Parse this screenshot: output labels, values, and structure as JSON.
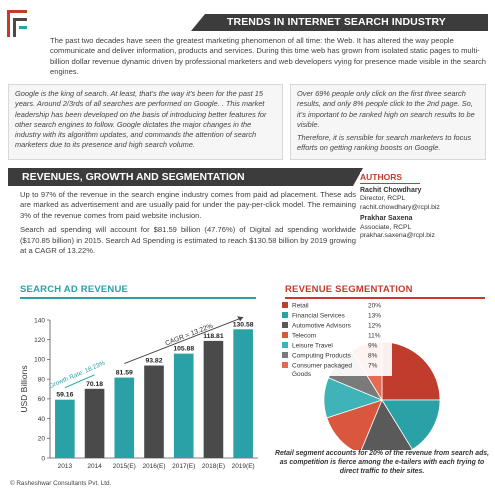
{
  "header": {
    "title": "TRENDS IN INTERNET SEARCH INDUSTRY",
    "intro": "The past two decades have seen the greatest marketing phenomenon of all time: the Web. It has altered the way people communicate and deliver information, products and services. During this time web has grown from isolated static pages to multi-billion dollar revenue dynamic driven by professional marketers and web developers vying for presence made visible in the search engines."
  },
  "quotes": {
    "left": "Google is the king of search. At least, that’s the way it’s been for the past 15 years. Around 2/3rds of all searches are performed on Google. . This market leadership has been developed on the basis of introducing better features for other search engines to follow. Google dictates the major changes in the industry with its algorithm updates, and commands the attention of search marketers due to its presence and high search volume.",
    "right_1": "Over 69% people only click on the first three search results, and only 8% people click to the 2nd page. So, it’s important to be ranked high on search results to be visible.",
    "right_2": "Therefore, it is sensible for search marketers to focus efforts on getting ranking boosts on Google."
  },
  "revenues": {
    "heading": "REVENUES, GROWTH AND SEGMENTATION",
    "para_1": "Up to 97% of the revenue in the search engine industry comes from paid ad placement. These ads are marked as advertisement and are usually paid for under the pay-per-click model. The remaining 3% of the revenue comes from paid website inclusion.",
    "para_2": "Search ad spending will account for $81.59 billion (47.76%) of Digital ad spending worldwide ($170.85 billion) in 2015. Search Ad Spending is estimated to reach $130.58 billion by 2019 growing at a CAGR of 13.22%."
  },
  "authors": {
    "title": "AUTHORS",
    "list": [
      {
        "name": "Rachit Chowdhary",
        "role": "Director, RCPL",
        "email": "rachit.chowdhary@rcpl.biz"
      },
      {
        "name": "Prakhar Saxena",
        "role": "Associate, RCPL",
        "email": "prakhar.saxena@rcpl.biz"
      }
    ]
  },
  "ad_chart_title": "SEARCH AD REVENUE",
  "seg_chart_title": "REVENUE SEGMENTATION",
  "seg_note": "Retail segment accounts for 20% of the revenue from search ads, as competition is fierce among the e-tailers with each trying to direct traffic to their sites.",
  "footer": "© Rasheshwar Consultants Pvt. Ltd.",
  "colors": {
    "teal": "#2aa1a6",
    "dark": "#4a4a4a",
    "red": "#c03c2c"
  },
  "chart_data": [
    {
      "type": "bar",
      "title": "SEARCH AD REVENUE",
      "categories": [
        "2013",
        "2014",
        "2015(E)",
        "2016(E)",
        "2017(E)",
        "2018(E)",
        "2019(E)"
      ],
      "values": [
        59.16,
        70.18,
        81.59,
        93.82,
        105.88,
        118.81,
        130.58
      ],
      "colors": [
        "#2aa1a6",
        "#4a4a4a",
        "#2aa1a6",
        "#4a4a4a",
        "#2aa1a6",
        "#4a4a4a",
        "#2aa1a6"
      ],
      "xlabel": "",
      "ylabel": "USD Billions",
      "ylim": [
        0,
        140
      ],
      "yticks": [
        0,
        20,
        40,
        60,
        80,
        100,
        120,
        140
      ],
      "grid": false,
      "annotations": [
        "Growth Rate: 18.23%",
        "CAGR = 13.22%"
      ]
    },
    {
      "type": "pie",
      "title": "REVENUE SEGMENTATION",
      "categories": [
        "Retail",
        "Financial Services",
        "Automotive Advisors",
        "Telecom",
        "Leisure Travel",
        "Computing Products",
        "Consumer packaged Goods"
      ],
      "values": [
        20,
        13,
        12,
        11,
        9,
        8,
        7
      ],
      "value_labels": [
        "20%",
        "13%",
        "12%",
        "11%",
        "9%",
        "8%",
        "7%"
      ],
      "colors": [
        "#c03c2c",
        "#2aa1a6",
        "#5a5a5a",
        "#d9573f",
        "#3fb3b8",
        "#7a7a7a",
        "#e46b52"
      ],
      "legend": "top-left"
    }
  ]
}
